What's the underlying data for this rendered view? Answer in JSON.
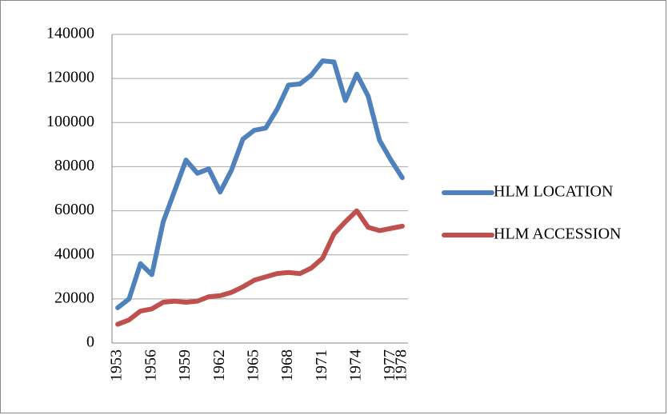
{
  "chart_data": {
    "type": "line",
    "categories": [
      "1953",
      null,
      null,
      "1956",
      null,
      null,
      "1959",
      null,
      null,
      "1962",
      null,
      null,
      "1965",
      null,
      null,
      "1968",
      null,
      null,
      "1971",
      null,
      null,
      "1974",
      null,
      null,
      "1977",
      "1978"
    ],
    "series": [
      {
        "name": "HLM LOCATION",
        "color": "#4f81bd",
        "values": [
          16000,
          20000,
          36000,
          31000,
          55000,
          69000,
          83000,
          77000,
          79000,
          68500,
          78500,
          92500,
          96500,
          97500,
          106000,
          117000,
          117500,
          121500,
          128000,
          127500,
          110000,
          122000,
          112000,
          92000,
          83000,
          75000
        ]
      },
      {
        "name": "HLM ACCESSION",
        "color": "#c0504d",
        "values": [
          8500,
          10500,
          14500,
          15500,
          18500,
          19000,
          18500,
          19000,
          21000,
          21500,
          23000,
          25500,
          28500,
          30000,
          31500,
          32000,
          31500,
          34000,
          38500,
          49500,
          55000,
          60000,
          52500,
          51000,
          52000,
          53000
        ]
      }
    ],
    "ylim": [
      0,
      140000
    ],
    "yticks": [
      0,
      20000,
      40000,
      60000,
      80000,
      100000,
      120000,
      140000
    ],
    "grid": true,
    "legend": "right"
  }
}
